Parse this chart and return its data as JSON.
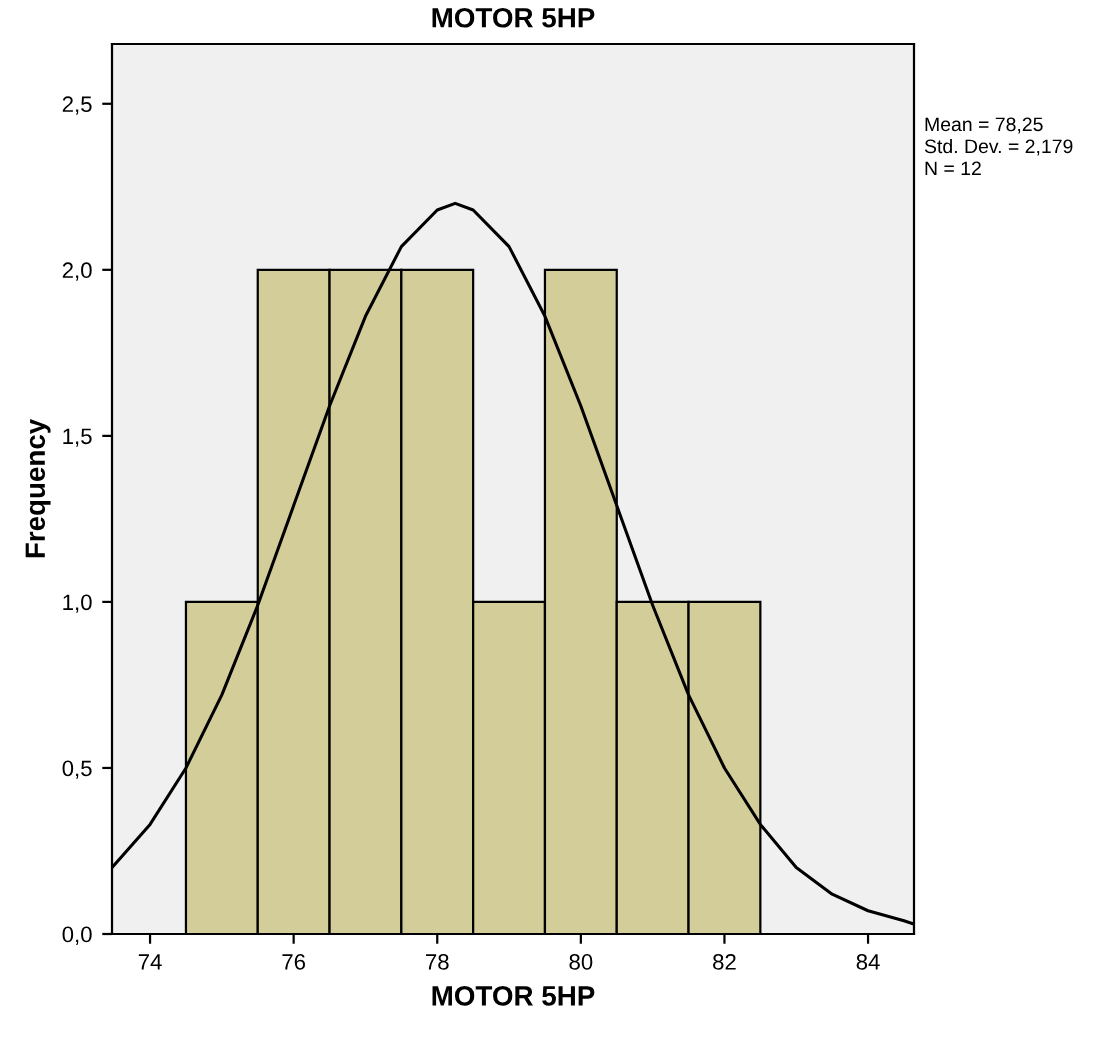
{
  "chart_data": {
    "type": "histogram",
    "title": "MOTOR 5HP",
    "xlabel": "MOTOR 5HP",
    "ylabel": "Frequency",
    "bins": [
      74.5,
      75.5,
      76.5,
      77.5,
      78.5,
      79.5,
      80.5,
      81.5,
      82.5
    ],
    "values": [
      1,
      2,
      2,
      2,
      1,
      2,
      1,
      1
    ],
    "color": "#d3ce99",
    "xlim": [
      73.47,
      84.64
    ],
    "xticks": [
      74,
      76,
      78,
      80,
      82,
      84
    ],
    "ylim": [
      0,
      2.68
    ],
    "yticks": [
      {
        "value": 0,
        "label": "0,0"
      },
      {
        "value": 0.5,
        "label": "0,5"
      },
      {
        "value": 1,
        "label": "1,0"
      },
      {
        "value": 1.5,
        "label": "1,5"
      },
      {
        "value": 2,
        "label": "2,0"
      },
      {
        "value": 2.5,
        "label": "2,5"
      }
    ],
    "grid": false,
    "legend": false,
    "series": [
      {
        "type": "line",
        "color": "#000000",
        "x": [
          73.47,
          74,
          74.5,
          75,
          75.5,
          76,
          76.5,
          77,
          77.5,
          78,
          78.25,
          78.5,
          79,
          79.5,
          80,
          80.5,
          81,
          81.5,
          82,
          82.5,
          83,
          83.5,
          84,
          84.5,
          84.64
        ],
        "values": [
          0.2,
          0.33,
          0.5,
          0.72,
          0.99,
          1.29,
          1.59,
          1.86,
          2.07,
          2.18,
          2.2,
          2.18,
          2.07,
          1.86,
          1.59,
          1.29,
          0.99,
          0.72,
          0.5,
          0.33,
          0.2,
          0.12,
          0.07,
          0.04,
          0.03
        ]
      }
    ],
    "annotations": [
      "Mean = 78,25",
      "Std. Dev. = 2,179",
      "N = 12"
    ]
  }
}
